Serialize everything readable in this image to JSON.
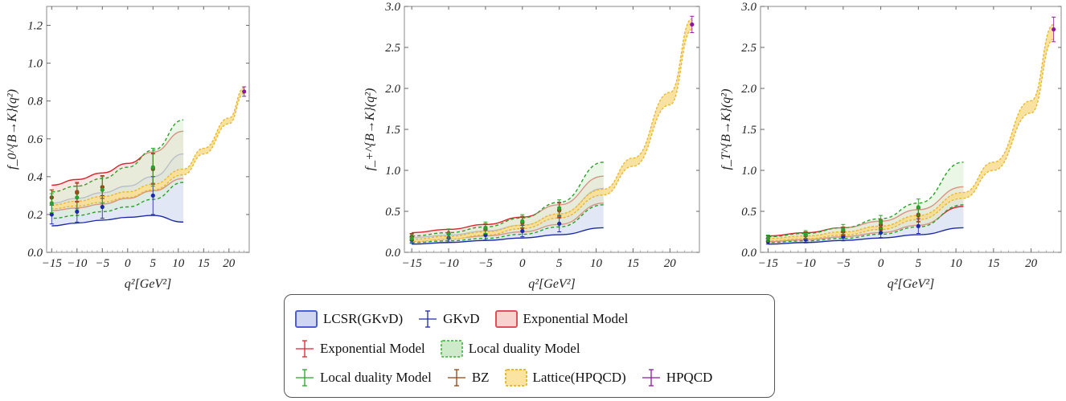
{
  "chart_data": [
    {
      "type": "line",
      "panel": "f0",
      "ylabel": "f_0^{B→K}(q²)",
      "xlabel": "q²[GeV²]",
      "xlim": [
        -16,
        24
      ],
      "ylim": [
        0,
        1.3
      ],
      "x_ticks": [
        -15,
        -10,
        -5,
        0,
        5,
        10,
        15,
        20
      ],
      "y_ticks": [
        0.0,
        0.2,
        0.4,
        0.6,
        0.8,
        1.0,
        1.2
      ],
      "tick_precision": 1,
      "series": [
        {
          "name": "LCSR(GKvD)",
          "kind": "band",
          "x": [
            -15,
            -10,
            -5,
            0,
            5,
            11
          ],
          "upper": [
            0.26,
            0.285,
            0.315,
            0.35,
            0.4,
            0.52
          ],
          "lower": [
            0.14,
            0.155,
            0.17,
            0.185,
            0.195,
            0.16
          ]
        },
        {
          "name": "Exponential Model",
          "kind": "band",
          "x": [
            -15,
            -10,
            -5,
            0,
            5,
            11
          ],
          "upper": [
            0.355,
            0.385,
            0.42,
            0.47,
            0.53,
            0.64
          ],
          "lower": [
            0.22,
            0.235,
            0.255,
            0.285,
            0.325,
            0.39
          ]
        },
        {
          "name": "Local duality Model",
          "kind": "band",
          "x": [
            -15,
            -10,
            -5,
            0,
            5,
            11
          ],
          "upper": [
            0.32,
            0.35,
            0.39,
            0.45,
            0.54,
            0.7
          ],
          "lower": [
            0.18,
            0.195,
            0.215,
            0.24,
            0.28,
            0.37
          ]
        },
        {
          "name": "Lattice(HPQCD)",
          "kind": "band",
          "x": [
            -15,
            -10,
            -5,
            0,
            5,
            11,
            15,
            20,
            23
          ],
          "upper": [
            0.25,
            0.27,
            0.295,
            0.32,
            0.36,
            0.44,
            0.55,
            0.71,
            0.87
          ],
          "lower": [
            0.23,
            0.245,
            0.265,
            0.29,
            0.33,
            0.41,
            0.52,
            0.68,
            0.84
          ]
        },
        {
          "name": "GKvD",
          "kind": "points",
          "x": [
            -15,
            -10,
            -5,
            5
          ],
          "y": [
            0.2,
            0.215,
            0.24,
            0.3
          ],
          "err": [
            0.05,
            0.055,
            0.06,
            0.1
          ]
        },
        {
          "name": "Exponential Model",
          "kind": "points",
          "x": [
            -15,
            -10,
            -5,
            5
          ],
          "y": [
            0.29,
            0.32,
            0.345,
            0.445
          ],
          "err": [
            0.04,
            0.05,
            0.06,
            0.08
          ]
        },
        {
          "name": "BZ",
          "kind": "points",
          "x": [
            -15,
            -10,
            -5,
            5
          ],
          "y": [
            0.29,
            0.315,
            0.345,
            0.44
          ],
          "err": [
            0.04,
            0.05,
            0.06,
            0.08
          ]
        },
        {
          "name": "Local duality Model",
          "kind": "points",
          "x": [
            -15,
            -10,
            -5,
            5
          ],
          "y": [
            0.26,
            0.29,
            0.33,
            0.45
          ],
          "err": [
            0.05,
            0.06,
            0.07,
            0.1
          ]
        },
        {
          "name": "HPQCD",
          "kind": "points",
          "x": [
            23
          ],
          "y": [
            0.85
          ],
          "err": [
            0.025
          ]
        }
      ]
    },
    {
      "type": "line",
      "panel": "fplus",
      "ylabel": "f_+^{B→K}(q²)",
      "xlabel": "q²[GeV²]",
      "xlim": [
        -16,
        24
      ],
      "ylim": [
        0,
        3.0
      ],
      "x_ticks": [
        -15,
        -10,
        -5,
        0,
        5,
        10,
        15,
        20
      ],
      "y_ticks": [
        0.0,
        0.5,
        1.0,
        1.5,
        2.0,
        2.5,
        3.0
      ],
      "tick_precision": 1,
      "series": [
        {
          "name": "LCSR(GKvD)",
          "kind": "band",
          "x": [
            -15,
            -10,
            -5,
            0,
            5,
            11
          ],
          "upper": [
            0.18,
            0.21,
            0.26,
            0.33,
            0.46,
            0.78
          ],
          "lower": [
            0.1,
            0.12,
            0.145,
            0.175,
            0.215,
            0.3
          ]
        },
        {
          "name": "Exponential Model",
          "kind": "band",
          "x": [
            -15,
            -10,
            -5,
            0,
            5,
            11
          ],
          "upper": [
            0.24,
            0.28,
            0.34,
            0.43,
            0.58,
            0.93
          ],
          "lower": [
            0.14,
            0.165,
            0.2,
            0.25,
            0.34,
            0.6
          ]
        },
        {
          "name": "Local duality Model",
          "kind": "band",
          "x": [
            -15,
            -10,
            -5,
            0,
            5,
            11
          ],
          "upper": [
            0.2,
            0.24,
            0.31,
            0.42,
            0.61,
            1.1
          ],
          "lower": [
            0.12,
            0.14,
            0.17,
            0.22,
            0.31,
            0.58
          ]
        },
        {
          "name": "Lattice(HPQCD)",
          "kind": "band",
          "x": [
            -15,
            -10,
            -5,
            0,
            5,
            11,
            15,
            20,
            23
          ],
          "upper": [
            0.16,
            0.195,
            0.25,
            0.33,
            0.47,
            0.77,
            1.15,
            1.95,
            2.85
          ],
          "lower": [
            0.13,
            0.16,
            0.21,
            0.29,
            0.42,
            0.7,
            1.05,
            1.8,
            2.72
          ]
        },
        {
          "name": "GKvD",
          "kind": "points",
          "x": [
            -15,
            -10,
            -5,
            0,
            5
          ],
          "y": [
            0.15,
            0.175,
            0.21,
            0.26,
            0.35
          ],
          "err": [
            0.04,
            0.05,
            0.06,
            0.07,
            0.1
          ]
        },
        {
          "name": "Exponential Model",
          "kind": "points",
          "x": [
            -15,
            -10,
            -5,
            0,
            5
          ],
          "y": [
            0.19,
            0.235,
            0.29,
            0.37,
            0.52
          ],
          "err": [
            0.04,
            0.05,
            0.06,
            0.07,
            0.09
          ]
        },
        {
          "name": "BZ",
          "kind": "points",
          "x": [
            -15,
            -10,
            -5,
            0,
            5
          ],
          "y": [
            0.19,
            0.23,
            0.285,
            0.36,
            0.51
          ],
          "err": [
            0.04,
            0.05,
            0.06,
            0.07,
            0.09
          ]
        },
        {
          "name": "Local duality Model",
          "kind": "points",
          "x": [
            -15,
            -10,
            -5,
            0,
            5
          ],
          "y": [
            0.17,
            0.225,
            0.3,
            0.38,
            0.54
          ],
          "err": [
            0.05,
            0.06,
            0.07,
            0.08,
            0.1
          ]
        },
        {
          "name": "HPQCD",
          "kind": "points",
          "x": [
            23
          ],
          "y": [
            2.78
          ],
          "err": [
            0.1
          ]
        }
      ]
    },
    {
      "type": "line",
      "panel": "fT",
      "ylabel": "f_T^{B→K}(q²)",
      "xlabel": "q²[GeV²]",
      "xlim": [
        -16,
        24
      ],
      "ylim": [
        0,
        3.0
      ],
      "x_ticks": [
        -15,
        -10,
        -5,
        0,
        5,
        10,
        15,
        20
      ],
      "y_ticks": [
        0.0,
        0.5,
        1.0,
        1.5,
        2.0,
        2.5,
        3.0
      ],
      "tick_precision": 1,
      "series": [
        {
          "name": "LCSR(GKvD)",
          "kind": "band",
          "x": [
            -15,
            -10,
            -5,
            0,
            5,
            11
          ],
          "upper": [
            0.16,
            0.19,
            0.24,
            0.31,
            0.43,
            0.7
          ],
          "lower": [
            0.1,
            0.12,
            0.145,
            0.175,
            0.215,
            0.3
          ]
        },
        {
          "name": "Exponential Model",
          "kind": "band",
          "x": [
            -15,
            -10,
            -5,
            0,
            5,
            11
          ],
          "upper": [
            0.2,
            0.24,
            0.3,
            0.38,
            0.52,
            0.8
          ],
          "lower": [
            0.13,
            0.155,
            0.19,
            0.24,
            0.33,
            0.56
          ]
        },
        {
          "name": "Local duality Model",
          "kind": "band",
          "x": [
            -15,
            -10,
            -5,
            0,
            5,
            11
          ],
          "upper": [
            0.19,
            0.23,
            0.3,
            0.41,
            0.6,
            1.1
          ],
          "lower": [
            0.12,
            0.14,
            0.17,
            0.22,
            0.31,
            0.58
          ]
        },
        {
          "name": "Lattice(HPQCD)",
          "kind": "band",
          "x": [
            -15,
            -10,
            -5,
            0,
            5,
            11,
            15,
            20,
            23
          ],
          "upper": [
            0.17,
            0.2,
            0.25,
            0.32,
            0.45,
            0.73,
            1.1,
            1.85,
            2.78
          ],
          "lower": [
            0.14,
            0.165,
            0.21,
            0.28,
            0.4,
            0.66,
            1.0,
            1.7,
            2.6
          ]
        },
        {
          "name": "GKvD",
          "kind": "points",
          "x": [
            -15,
            -10,
            -5,
            0,
            5
          ],
          "y": [
            0.13,
            0.155,
            0.19,
            0.24,
            0.32
          ],
          "err": [
            0.03,
            0.04,
            0.05,
            0.06,
            0.09
          ]
        },
        {
          "name": "Exponential Model",
          "kind": "points",
          "x": [
            -15,
            -10,
            -5,
            0,
            5
          ],
          "y": [
            0.17,
            0.21,
            0.26,
            0.34,
            0.46
          ],
          "err": [
            0.03,
            0.04,
            0.05,
            0.06,
            0.08
          ]
        },
        {
          "name": "BZ",
          "kind": "points",
          "x": [
            -15,
            -10,
            -5,
            0,
            5
          ],
          "y": [
            0.17,
            0.205,
            0.255,
            0.33,
            0.45
          ],
          "err": [
            0.03,
            0.04,
            0.05,
            0.06,
            0.08
          ]
        },
        {
          "name": "Local duality Model",
          "kind": "points",
          "x": [
            -15,
            -10,
            -5,
            0,
            5
          ],
          "y": [
            0.17,
            0.215,
            0.28,
            0.37,
            0.55
          ],
          "err": [
            0.04,
            0.05,
            0.06,
            0.08,
            0.1
          ]
        },
        {
          "name": "HPQCD",
          "kind": "points",
          "x": [
            23
          ],
          "y": [
            2.72
          ],
          "err": [
            0.15
          ]
        }
      ]
    }
  ],
  "legend": {
    "placement": "bottom-center",
    "rows": [
      [
        {
          "label": "LCSR(GKvD)",
          "swatch": "band",
          "color": "#4a5fd6",
          "fill": "#cfd6f2",
          "dashed": false
        },
        {
          "label": "GKvD",
          "swatch": "errorbar",
          "color": "#1c2aa8"
        },
        {
          "label": "Exponential Model",
          "swatch": "band",
          "color": "#e0505a",
          "fill": "#f8d2cf",
          "dashed": false
        }
      ],
      [
        {
          "label": "Exponential Model",
          "swatch": "errorbar",
          "color": "#d8262c"
        },
        {
          "label": "Local duality Model",
          "swatch": "band",
          "color": "#5cc25a",
          "fill": "#cdebc8",
          "dashed": true
        }
      ],
      [
        {
          "label": "Local duality Model",
          "swatch": "errorbar",
          "color": "#2ca02c"
        },
        {
          "label": "BZ",
          "swatch": "errorbar",
          "color": "#8b4513"
        },
        {
          "label": "Lattice(HPQCD)",
          "swatch": "band",
          "color": "#e8b830",
          "fill": "#fbe3a0",
          "dashed": true
        },
        {
          "label": "HPQCD",
          "swatch": "errorbar",
          "color": "#8b1a9b"
        }
      ]
    ]
  },
  "colors": {
    "LCSR(GKvD)": {
      "line": "#1c2aa8",
      "fill": "#dde3f3"
    },
    "Exponential Model": {
      "line": "#d8262c",
      "fill": "#f6d2cc"
    },
    "Local duality Model": {
      "line": "#2ca02c",
      "fill": "#d8efd2"
    },
    "Lattice(HPQCD)": {
      "line": "#e8b830",
      "fill": "#f8df95"
    },
    "GKvD": "#1c2aa8",
    "BZ": "#8b4513",
    "HPQCD": "#8b1a9b"
  }
}
